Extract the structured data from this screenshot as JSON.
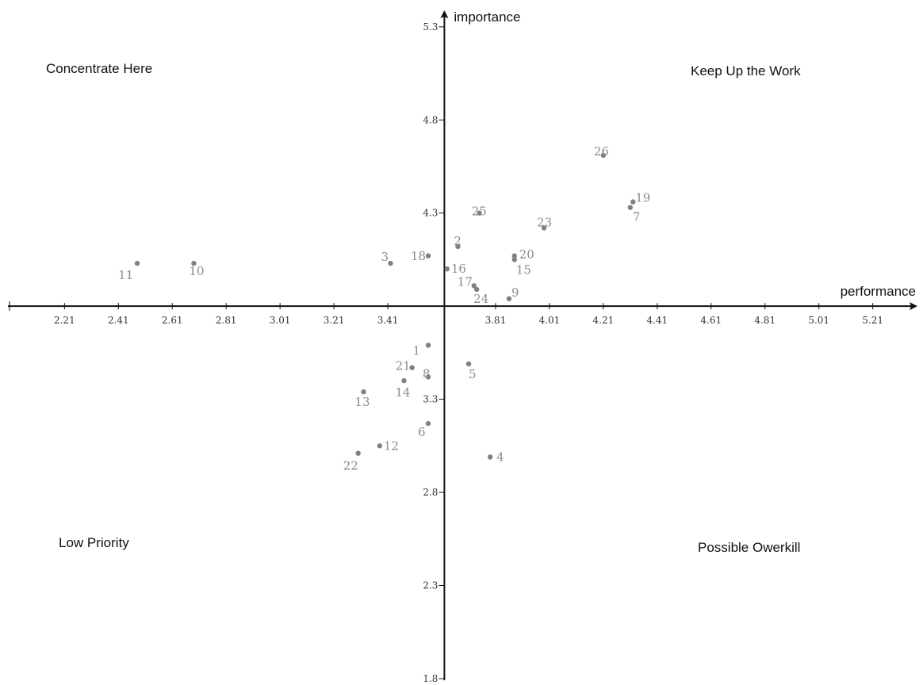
{
  "chart_data": {
    "type": "scatter",
    "xlabel": "performance",
    "ylabel": "importance",
    "x_ticks": [
      "2.21",
      "2.41",
      "2.61",
      "2.81",
      "3.01",
      "3.21",
      "3.41",
      "3.81",
      "4.01",
      "4.21",
      "4.41",
      "4.61",
      "4.81",
      "5.01",
      "5.21"
    ],
    "y_ticks": [
      "1.8",
      "2.3",
      "2.8",
      "3.3",
      "4.3",
      "4.8",
      "5.3"
    ],
    "xlim": [
      2.0,
      5.37
    ],
    "ylim": [
      1.77,
      5.41
    ],
    "x_origin": 3.62,
    "y_origin": 3.8,
    "quadrants": {
      "top_left": "Concentrate Here",
      "top_right": "Keep Up the Work",
      "bottom_left": "Low Priority",
      "bottom_right": "Possible Owerkill"
    },
    "grid": false,
    "colors": {
      "axis": "#111111",
      "point": "#808080",
      "label": "#8a8a8a"
    },
    "points": [
      {
        "label": "1",
        "x": 3.56,
        "y": 3.59
      },
      {
        "label": "2",
        "x": 3.67,
        "y": 4.12
      },
      {
        "label": "3",
        "x": 3.42,
        "y": 4.03
      },
      {
        "label": "4",
        "x": 3.79,
        "y": 2.99
      },
      {
        "label": "5",
        "x": 3.71,
        "y": 3.49
      },
      {
        "label": "6",
        "x": 3.56,
        "y": 3.17
      },
      {
        "label": "7",
        "x": 4.31,
        "y": 4.33
      },
      {
        "label": "8",
        "x": 3.56,
        "y": 3.42
      },
      {
        "label": "9",
        "x": 3.86,
        "y": 3.84
      },
      {
        "label": "10",
        "x": 2.69,
        "y": 4.03
      },
      {
        "label": "11",
        "x": 2.48,
        "y": 4.03
      },
      {
        "label": "12",
        "x": 3.38,
        "y": 3.05
      },
      {
        "label": "13",
        "x": 3.32,
        "y": 3.34
      },
      {
        "label": "14",
        "x": 3.47,
        "y": 3.4
      },
      {
        "label": "15",
        "x": 3.88,
        "y": 4.05
      },
      {
        "label": "16",
        "x": 3.63,
        "y": 4.0
      },
      {
        "label": "17",
        "x": 3.73,
        "y": 3.91
      },
      {
        "label": "18",
        "x": 3.56,
        "y": 4.07
      },
      {
        "label": "19",
        "x": 4.32,
        "y": 4.36
      },
      {
        "label": "20",
        "x": 3.88,
        "y": 4.07
      },
      {
        "label": "21",
        "x": 3.5,
        "y": 3.47
      },
      {
        "label": "22",
        "x": 3.3,
        "y": 3.01
      },
      {
        "label": "23",
        "x": 3.99,
        "y": 4.22
      },
      {
        "label": "24",
        "x": 3.74,
        "y": 3.89
      },
      {
        "label": "25",
        "x": 3.75,
        "y": 4.3
      },
      {
        "label": "26",
        "x": 4.21,
        "y": 4.61
      }
    ]
  }
}
